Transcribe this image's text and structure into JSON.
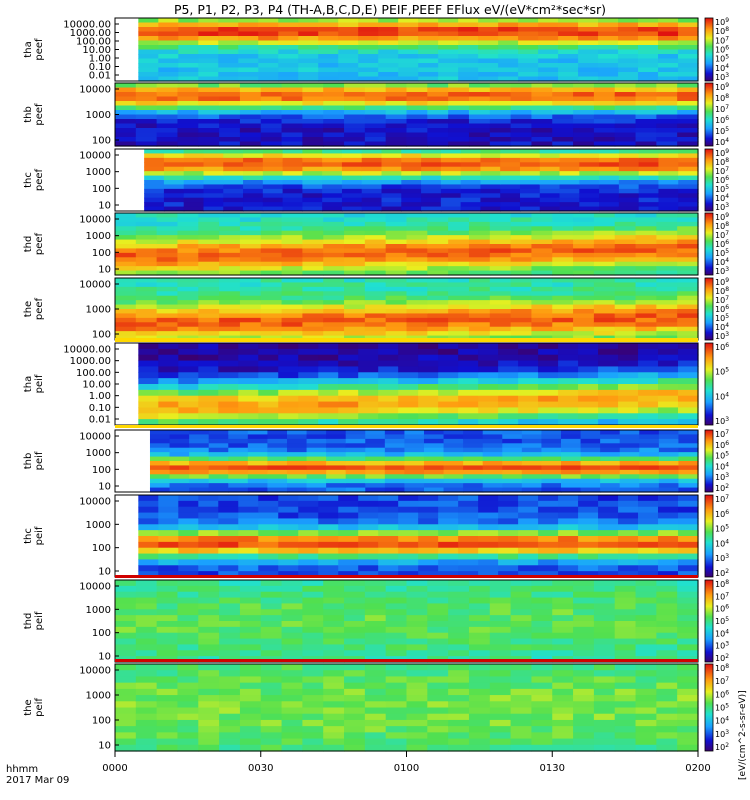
{
  "chart_data": {
    "type": "heatmap",
    "title": "P5, P1, P2, P3, P4 (TH-A,B,C,D,E) PEIF,PEEF EFlux eV/(eV*cm²*sec*sr)",
    "x_axis": {
      "ticks": [
        "0000",
        "0030",
        "0100",
        "0130",
        "0200"
      ],
      "label": "hhmm",
      "date": "2017 Mar 09"
    },
    "colorbar_label": "[eV/(cm^2-s-sr-eV)]",
    "panels": [
      {
        "id": "tha_peef",
        "label": [
          "tha",
          "peef"
        ],
        "species": "electron",
        "yticks": [
          "10000.00",
          "1000.00",
          "100.00",
          "10.00",
          "1.00",
          "0.10",
          "0.01"
        ],
        "cbar_exps": [
          3,
          4,
          5,
          6,
          7,
          8,
          9
        ],
        "gap_end": 0.04,
        "profile": {
          "center": 0.2,
          "width": 0.22,
          "hi": 0.95,
          "lo": 0.35,
          "drift": 0.0
        }
      },
      {
        "id": "thb_peef",
        "label": [
          "thb",
          "peef"
        ],
        "species": "electron",
        "yticks": [
          "10000",
          "1000",
          "100"
        ],
        "cbar_exps": [
          4,
          5,
          6,
          7,
          8,
          9
        ],
        "gap_end": 0.0,
        "profile": {
          "center": 0.18,
          "width": 0.25,
          "hi": 0.9,
          "lo": 0.1,
          "drift": 0.0
        }
      },
      {
        "id": "thc_peef",
        "label": [
          "thc",
          "peef"
        ],
        "species": "electron",
        "yticks": [
          "10000",
          "1000",
          "100",
          "10"
        ],
        "cbar_exps": [
          3,
          4,
          5,
          6,
          7,
          8,
          9
        ],
        "gap_end": 0.05,
        "profile": {
          "center": 0.22,
          "width": 0.25,
          "hi": 0.92,
          "lo": 0.12,
          "drift": 0.0
        }
      },
      {
        "id": "thd_peef",
        "label": [
          "thd",
          "peef"
        ],
        "species": "electron",
        "yticks": [
          "10000",
          "1000",
          "100",
          "10"
        ],
        "cbar_exps": [
          3,
          4,
          5,
          6,
          7,
          8,
          9
        ],
        "gap_end": 0.0,
        "profile": {
          "center": 0.65,
          "width": 0.3,
          "hi": 0.9,
          "lo": 0.42,
          "drift": -0.35
        }
      },
      {
        "id": "the_peef",
        "label": [
          "the",
          "peef"
        ],
        "species": "electron",
        "yticks": [
          "10000",
          "1000",
          "100"
        ],
        "cbar_exps": [
          3,
          4,
          5,
          6,
          7,
          8,
          9
        ],
        "gap_end": 0.0,
        "profile": {
          "center": 0.7,
          "width": 0.3,
          "hi": 0.9,
          "lo": 0.45,
          "drift": -0.25
        }
      },
      {
        "id": "tha_peif",
        "label": [
          "tha",
          "peif"
        ],
        "species": "ion",
        "yticks": [
          "10000.00",
          "1000.00",
          "100.00",
          "10.00",
          "1.00",
          "0.10",
          "0.01"
        ],
        "cbar_exps": [
          3,
          4,
          5,
          6
        ],
        "gap_end": 0.04,
        "profile": {
          "center": 0.75,
          "width": 0.3,
          "hi": 0.8,
          "lo": 0.05,
          "drift": -0.3
        }
      },
      {
        "id": "thb_peif",
        "label": [
          "thb",
          "peif"
        ],
        "species": "ion",
        "yticks": [
          "10000",
          "1000",
          "100",
          "10"
        ],
        "cbar_exps": [
          2,
          3,
          4,
          5,
          6,
          7
        ],
        "gap_end": 0.06,
        "profile": {
          "center": 0.62,
          "width": 0.18,
          "hi": 0.92,
          "lo": 0.2,
          "drift": 0.0
        }
      },
      {
        "id": "thc_peif",
        "label": [
          "thc",
          "peif"
        ],
        "species": "ion",
        "yticks": [
          "10000",
          "1000",
          "100",
          "10"
        ],
        "cbar_exps": [
          2,
          3,
          4,
          5,
          6,
          7
        ],
        "gap_end": 0.04,
        "profile": {
          "center": 0.6,
          "width": 0.18,
          "hi": 0.92,
          "lo": 0.18,
          "drift": 0.0
        }
      },
      {
        "id": "thd_peif",
        "label": [
          "thd",
          "peif"
        ],
        "species": "ion",
        "yticks": [
          "10000",
          "1000",
          "100",
          "10"
        ],
        "cbar_exps": [
          2,
          3,
          4,
          5,
          6,
          7,
          8
        ],
        "gap_end": 0.0,
        "profile": {
          "center": 0.5,
          "width": 0.6,
          "hi": 0.55,
          "lo": 0.4,
          "drift": -0.1
        }
      },
      {
        "id": "the_peif",
        "label": [
          "the",
          "peif"
        ],
        "species": "ion",
        "yticks": [
          "10000",
          "1000",
          "100",
          "10"
        ],
        "cbar_exps": [
          2,
          3,
          4,
          5,
          6,
          7,
          8
        ],
        "gap_end": 0.0,
        "profile": {
          "center": 0.5,
          "width": 0.6,
          "hi": 0.58,
          "lo": 0.45,
          "drift": -0.05
        }
      }
    ]
  }
}
